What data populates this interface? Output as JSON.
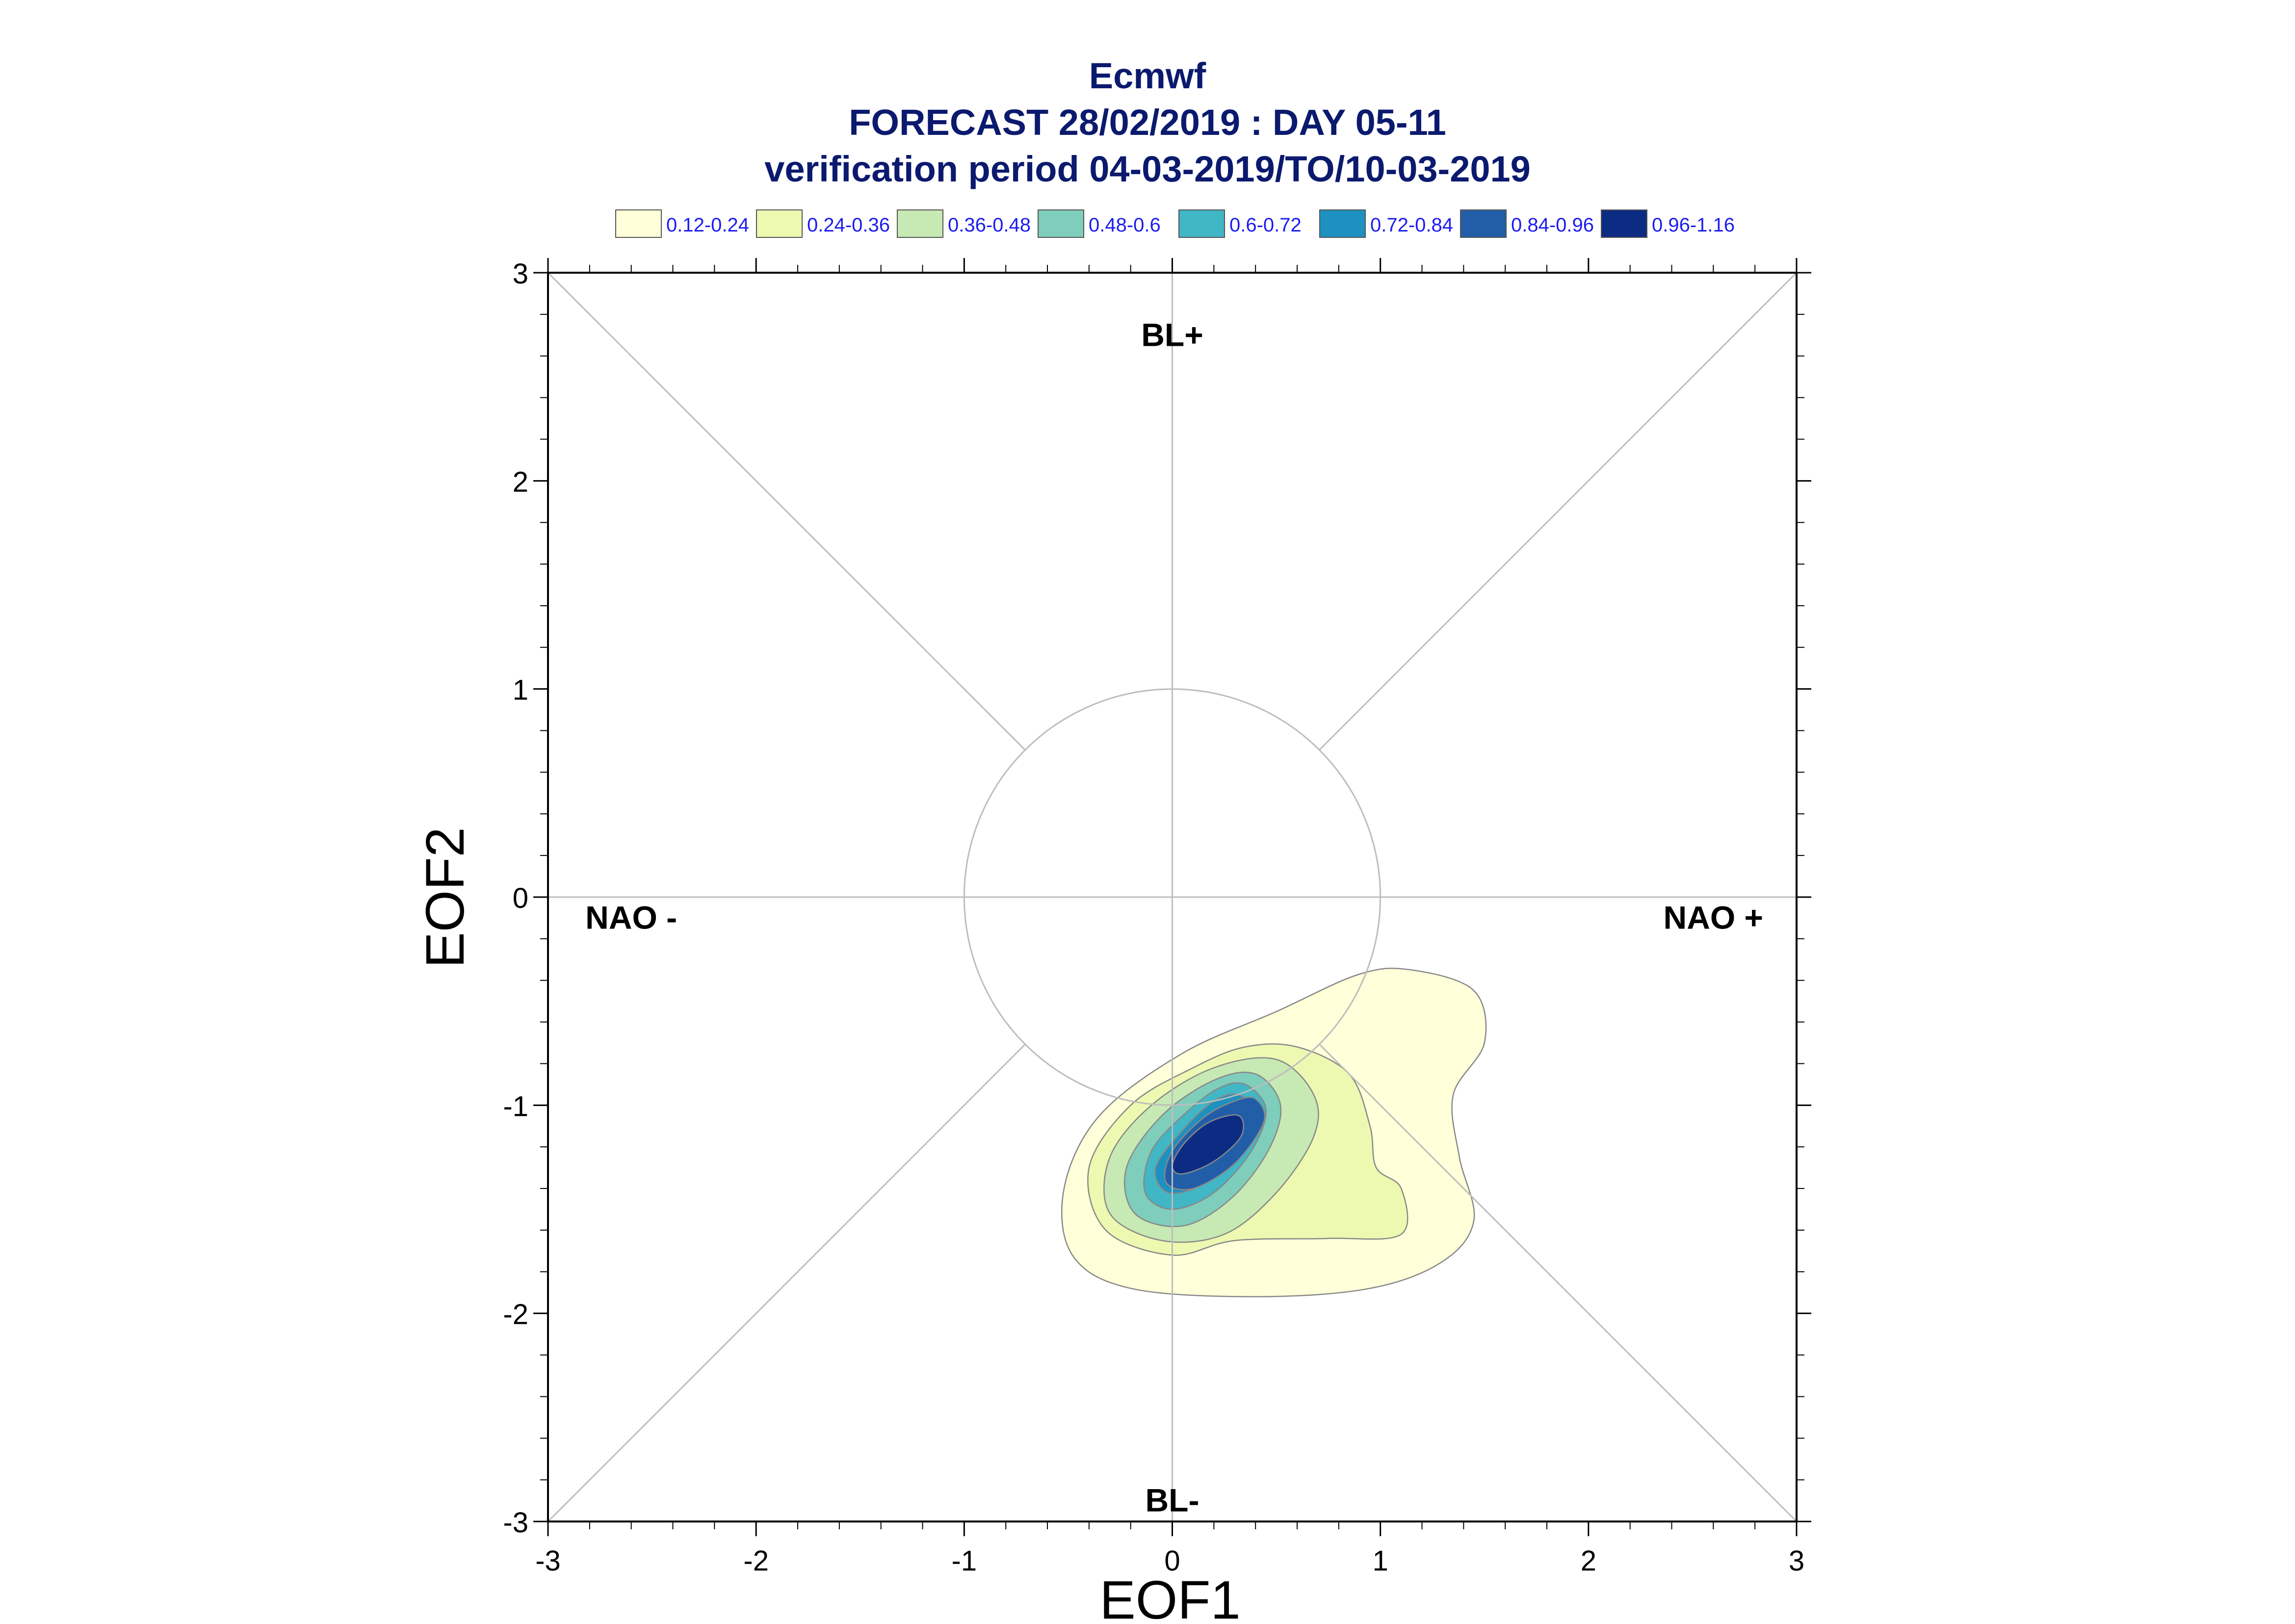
{
  "chart_data": {
    "type": "contour",
    "title_lines": [
      "Ecmwf",
      "FORECAST 28/02/2019 : DAY 05-11",
      "verification period 04-03-2019/TO/10-03-2019"
    ],
    "xlabel": "EOF1",
    "ylabel": "EOF2",
    "xlim": [
      -3,
      3
    ],
    "ylim": [
      -3,
      3
    ],
    "x_ticks": [
      "-3",
      "-2",
      "-1",
      "0",
      "1",
      "2",
      "3"
    ],
    "y_ticks": [
      "-3",
      "-2",
      "-1",
      "0",
      "1",
      "2",
      "3"
    ],
    "legend": [
      {
        "label": "0.12-0.24",
        "color": "#ffffd9"
      },
      {
        "label": "0.24-0.36",
        "color": "#edf8b1"
      },
      {
        "label": "0.36-0.48",
        "color": "#c7e9b4"
      },
      {
        "label": "0.48-0.6",
        "color": "#7fcdbb"
      },
      {
        "label": "0.6-0.72",
        "color": "#41b6c4"
      },
      {
        "label": "0.72-0.84",
        "color": "#1d91c0"
      },
      {
        "label": "0.84-0.96",
        "color": "#225ea8"
      },
      {
        "label": "0.96-1.16",
        "color": "#0c2c84"
      }
    ],
    "regime_labels": [
      {
        "text": "BL+",
        "x": 0,
        "y": 2.7
      },
      {
        "text": "BL-",
        "x": 0,
        "y": -2.9
      },
      {
        "text": "NAO -",
        "x": -2.6,
        "y": -0.1
      },
      {
        "text": "NAO +",
        "x": 2.6,
        "y": -0.1
      }
    ],
    "unit_circle_radius": 1,
    "density_contours": [
      {
        "level": "0.12-0.24",
        "points": [
          [
            1.15,
            -0.35
          ],
          [
            1.45,
            -0.45
          ],
          [
            1.5,
            -0.7
          ],
          [
            1.35,
            -0.95
          ],
          [
            1.38,
            -1.25
          ],
          [
            1.45,
            -1.55
          ],
          [
            1.3,
            -1.75
          ],
          [
            0.95,
            -1.88
          ],
          [
            0.4,
            -1.92
          ],
          [
            -0.2,
            -1.88
          ],
          [
            -0.48,
            -1.72
          ],
          [
            -0.52,
            -1.4
          ],
          [
            -0.35,
            -1.05
          ],
          [
            0.05,
            -0.75
          ],
          [
            0.5,
            -0.55
          ],
          [
            0.9,
            -0.37
          ]
        ]
      },
      {
        "level": "0.24-0.36",
        "points": [
          [
            0.6,
            -0.72
          ],
          [
            0.85,
            -0.85
          ],
          [
            0.95,
            -1.1
          ],
          [
            0.98,
            -1.3
          ],
          [
            1.1,
            -1.4
          ],
          [
            1.1,
            -1.62
          ],
          [
            0.75,
            -1.64
          ],
          [
            0.3,
            -1.65
          ],
          [
            0.0,
            -1.72
          ],
          [
            -0.32,
            -1.6
          ],
          [
            -0.4,
            -1.3
          ],
          [
            -0.2,
            -1.0
          ],
          [
            0.1,
            -0.82
          ],
          [
            0.35,
            -0.72
          ]
        ]
      },
      {
        "level": "0.36-0.48",
        "points": [
          [
            0.5,
            -0.78
          ],
          [
            0.68,
            -0.95
          ],
          [
            0.68,
            -1.15
          ],
          [
            0.5,
            -1.42
          ],
          [
            0.25,
            -1.62
          ],
          [
            -0.05,
            -1.65
          ],
          [
            -0.3,
            -1.52
          ],
          [
            -0.3,
            -1.25
          ],
          [
            -0.1,
            -1.0
          ],
          [
            0.2,
            -0.82
          ]
        ]
      },
      {
        "level": "0.48-0.6",
        "points": [
          [
            0.4,
            -0.85
          ],
          [
            0.52,
            -1.0
          ],
          [
            0.46,
            -1.22
          ],
          [
            0.28,
            -1.45
          ],
          [
            0.05,
            -1.58
          ],
          [
            -0.18,
            -1.52
          ],
          [
            -0.22,
            -1.3
          ],
          [
            -0.05,
            -1.05
          ],
          [
            0.2,
            -0.88
          ]
        ]
      },
      {
        "level": "0.6-0.72",
        "points": [
          [
            0.35,
            -0.9
          ],
          [
            0.45,
            -1.02
          ],
          [
            0.38,
            -1.22
          ],
          [
            0.2,
            -1.42
          ],
          [
            0.0,
            -1.5
          ],
          [
            -0.13,
            -1.42
          ],
          [
            -0.1,
            -1.22
          ],
          [
            0.05,
            -1.05
          ],
          [
            0.22,
            -0.92
          ]
        ]
      },
      {
        "level": "0.72-0.84",
        "points": [
          [
            0.32,
            -0.95
          ],
          [
            0.4,
            -1.05
          ],
          [
            0.32,
            -1.24
          ],
          [
            0.15,
            -1.38
          ],
          [
            -0.02,
            -1.42
          ],
          [
            -0.08,
            -1.3
          ],
          [
            0.05,
            -1.12
          ],
          [
            0.2,
            -0.98
          ]
        ]
      },
      {
        "level": "0.84-0.96",
        "points": [
          [
            0.4,
            -0.97
          ],
          [
            0.44,
            -1.08
          ],
          [
            0.3,
            -1.28
          ],
          [
            0.1,
            -1.4
          ],
          [
            -0.03,
            -1.37
          ],
          [
            0.0,
            -1.22
          ],
          [
            0.15,
            -1.06
          ],
          [
            0.3,
            -0.98
          ]
        ]
      },
      {
        "level": "0.96-1.16",
        "points": [
          [
            0.32,
            -1.05
          ],
          [
            0.33,
            -1.15
          ],
          [
            0.2,
            -1.27
          ],
          [
            0.05,
            -1.33
          ],
          [
            0.0,
            -1.29
          ],
          [
            0.06,
            -1.18
          ],
          [
            0.18,
            -1.08
          ]
        ]
      }
    ]
  }
}
